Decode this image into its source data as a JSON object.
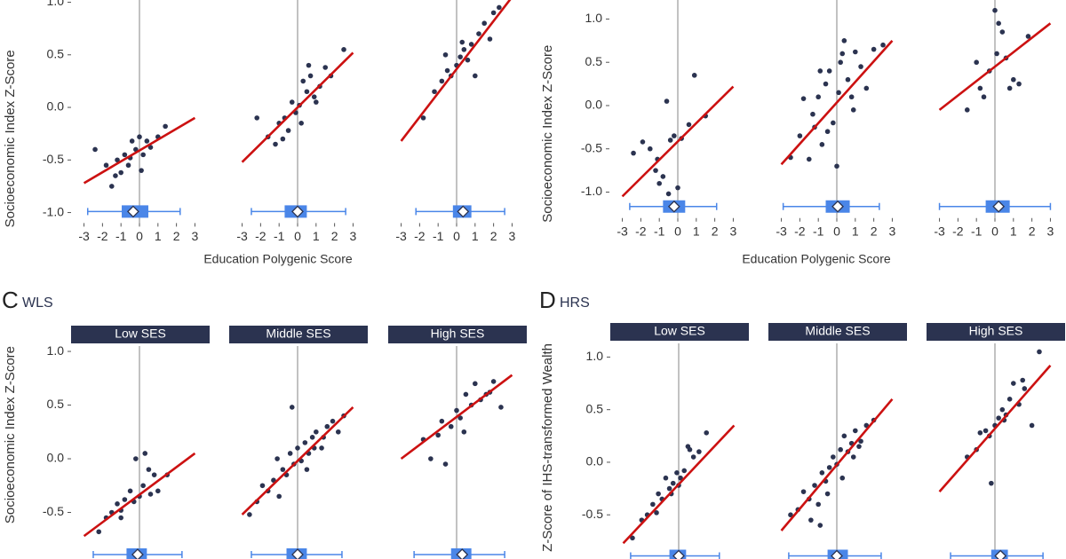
{
  "chart_data": [
    {
      "type": "scatter",
      "y_label": "Socioeconomic Index Z-Score",
      "x_label": "Education Polygenic Score",
      "xlim": [
        -3.7,
        3.7
      ],
      "xticks": [
        -3,
        -2,
        -1,
        0,
        1,
        2,
        3
      ],
      "ylim": [
        -1.1,
        1.12
      ],
      "yticks": [
        {
          "value": -1.0,
          "label": "-1.0"
        },
        {
          "value": -0.5,
          "label": "-0.5"
        },
        {
          "value": 0.0,
          "label": "0.0"
        },
        {
          "value": 0.5,
          "label": "0.5"
        },
        {
          "value": 1.0,
          "label": "1.0"
        }
      ],
      "point_color": "#2b3350",
      "fit_color": "#cc1111",
      "box_color": "#4a86e8",
      "facets": [
        {
          "x": [
            -2.4,
            -1.8,
            -1.5,
            -1.2,
            -1.0,
            -0.8,
            -0.6,
            -0.4,
            -0.2,
            0,
            0.2,
            0.4,
            0.6,
            1.0,
            1.4,
            -1.3,
            -0.5,
            0.1
          ],
          "y": [
            -0.4,
            -0.55,
            -0.75,
            -0.5,
            -0.62,
            -0.45,
            -0.55,
            -0.32,
            -0.4,
            -0.28,
            -0.45,
            -0.32,
            -0.38,
            -0.28,
            -0.18,
            -0.65,
            -0.48,
            -0.6
          ],
          "fit": {
            "x": [
              -3,
              3
            ],
            "y": [
              -0.72,
              -0.1
            ]
          },
          "box": {
            "whisker": [
              -2.8,
              2.2
            ],
            "box": [
              -0.96,
              0.48
            ],
            "mean": -0.34
          }
        },
        {
          "x": [
            -2.2,
            -1.6,
            -1.2,
            -1.0,
            -0.7,
            -0.5,
            -0.3,
            -0.1,
            0.1,
            0.3,
            0.5,
            0.7,
            0.9,
            1.2,
            1.5,
            1.8,
            2.5,
            -0.8,
            0.2,
            0.6,
            1.0
          ],
          "y": [
            -0.1,
            -0.28,
            -0.35,
            -0.15,
            -0.1,
            -0.22,
            0.05,
            -0.05,
            0.02,
            0.25,
            0.15,
            0.3,
            0.1,
            0.2,
            0.38,
            0.3,
            0.55,
            -0.3,
            -0.15,
            0.4,
            0.05
          ],
          "fit": {
            "x": [
              -3,
              3
            ],
            "y": [
              -0.52,
              0.52
            ]
          },
          "box": {
            "whisker": [
              -2.5,
              2.6
            ],
            "box": [
              -0.7,
              0.5
            ],
            "mean": 0
          }
        },
        {
          "x": [
            -1.8,
            -1.2,
            -0.8,
            -0.5,
            -0.3,
            0,
            0.2,
            0.4,
            0.6,
            0.8,
            1.0,
            1.2,
            1.5,
            1.8,
            2.0,
            2.3,
            -0.6,
            0.3
          ],
          "y": [
            -0.1,
            0.15,
            0.25,
            0.35,
            0.3,
            0.4,
            0.48,
            0.55,
            0.45,
            0.6,
            0.3,
            0.7,
            0.8,
            0.65,
            0.9,
            0.95,
            0.5,
            0.62
          ],
          "fit": {
            "x": [
              -3,
              3
            ],
            "y": [
              -0.32,
              1.05
            ]
          },
          "box": {
            "whisker": [
              -2.2,
              2.6
            ],
            "box": [
              -0.2,
              0.8
            ],
            "mean": 0.35
          }
        }
      ]
    },
    {
      "type": "scatter",
      "y_label": "Socioeconomic Index Z-Score",
      "x_label": "Education Polygenic Score",
      "xlim": [
        -3.7,
        3.7
      ],
      "xticks": [
        -3,
        -2,
        -1,
        0,
        1,
        2,
        3
      ],
      "ylim": [
        -1.3,
        1.22
      ],
      "yticks": [
        {
          "value": -1.0,
          "label": "-1.0"
        },
        {
          "value": -0.5,
          "label": "-0.5"
        },
        {
          "value": 0.0,
          "label": "0.0"
        },
        {
          "value": 0.5,
          "label": "0.5"
        },
        {
          "value": 1.0,
          "label": "1.0"
        }
      ],
      "point_color": "#2b3350",
      "fit_color": "#cc1111",
      "box_color": "#4a86e8",
      "facets": [
        {
          "x": [
            -2.4,
            -1.9,
            -1.5,
            -1.2,
            -1.0,
            -0.8,
            -0.6,
            -0.4,
            -0.2,
            0,
            0.2,
            0.6,
            0.9,
            1.5,
            -0.5,
            -1.1
          ],
          "y": [
            -0.55,
            -0.42,
            -0.5,
            -0.75,
            -0.9,
            -0.82,
            0.05,
            -0.4,
            -0.35,
            -0.95,
            -0.38,
            -0.22,
            0.35,
            -0.12,
            -1.02,
            -0.62
          ],
          "fit": {
            "x": [
              -3,
              3
            ],
            "y": [
              -1.05,
              0.22
            ]
          },
          "box": {
            "whisker": [
              -2.6,
              2.1
            ],
            "box": [
              -0.8,
              0.4
            ],
            "mean": -0.2
          }
        },
        {
          "x": [
            -2.5,
            -2.0,
            -1.8,
            -1.5,
            -1.2,
            -1.0,
            -0.8,
            -0.6,
            -0.4,
            -0.2,
            0,
            0.2,
            0.4,
            0.6,
            0.8,
            1.0,
            1.3,
            1.6,
            2.0,
            2.5,
            -1.3,
            -0.5,
            0.3,
            0.9,
            -0.9,
            0.1
          ],
          "y": [
            -0.6,
            -0.35,
            0.08,
            -0.62,
            -0.25,
            0.1,
            -0.45,
            0.25,
            0.4,
            -0.2,
            -0.7,
            0.5,
            0.75,
            0.3,
            0.1,
            0.62,
            0.45,
            0.2,
            0.65,
            0.7,
            -0.1,
            -0.3,
            0.6,
            -0.05,
            0.4,
            0.15
          ],
          "fit": {
            "x": [
              -3,
              3
            ],
            "y": [
              -0.68,
              0.75
            ]
          },
          "box": {
            "whisker": [
              -2.9,
              2.3
            ],
            "box": [
              -0.6,
              0.7
            ],
            "mean": 0.05
          }
        },
        {
          "x": [
            -1.5,
            -1.0,
            -0.6,
            -0.3,
            0,
            0.2,
            0.4,
            0.6,
            0.8,
            1.0,
            1.3,
            1.8,
            -0.8,
            0.1
          ],
          "y": [
            -0.05,
            0.5,
            0.1,
            0.4,
            1.1,
            0.95,
            0.85,
            0.55,
            0.2,
            0.3,
            0.25,
            0.8,
            0.2,
            0.6
          ],
          "fit": {
            "x": [
              -3,
              3
            ],
            "y": [
              -0.05,
              0.95
            ]
          },
          "box": {
            "whisker": [
              -3.0,
              3.0
            ],
            "box": [
              -0.5,
              0.8
            ],
            "mean": 0.2
          }
        }
      ]
    },
    {
      "type": "scatter",
      "letter": "C",
      "cohort": "WLS",
      "y_label": "Socioeconomic Index Z-Score",
      "xlim": [
        -3.7,
        3.7
      ],
      "ylim": [
        -1.0,
        1.05
      ],
      "yticks": [
        {
          "value": -0.5,
          "label": "-0.5"
        },
        {
          "value": 0.0,
          "label": "0.0"
        },
        {
          "value": 0.5,
          "label": "0.5"
        },
        {
          "value": 1.0,
          "label": "1.0"
        }
      ],
      "point_color": "#2b3350",
      "fit_color": "#cc1111",
      "box_color": "#4a86e8",
      "strip_color": "#2b3350",
      "facets": [
        {
          "strip": "Low SES",
          "x": [
            -2.2,
            -1.8,
            -1.5,
            -1.2,
            -1.0,
            -0.8,
            -0.5,
            -0.3,
            0,
            0.2,
            0.5,
            0.8,
            1.0,
            1.5,
            -0.2,
            0.3,
            -1.0,
            0.6
          ],
          "y": [
            -0.68,
            -0.55,
            -0.5,
            -0.42,
            -0.48,
            -0.38,
            -0.3,
            -0.4,
            -0.35,
            -0.25,
            -0.1,
            -0.15,
            -0.3,
            -0.15,
            0.0,
            0.05,
            -0.55,
            -0.33
          ],
          "fit": {
            "x": [
              -3,
              3
            ],
            "y": [
              -0.72,
              0.05
            ]
          },
          "box": {
            "whisker": [
              -2.5,
              2.3
            ],
            "box": [
              -0.7,
              0.4
            ],
            "mean": -0.1
          }
        },
        {
          "strip": "Middle SES",
          "x": [
            -2.6,
            -2.2,
            -1.9,
            -1.6,
            -1.3,
            -1.0,
            -0.8,
            -0.6,
            -0.4,
            -0.2,
            0,
            0.2,
            0.4,
            0.6,
            0.8,
            1.0,
            1.3,
            1.6,
            1.9,
            2.2,
            2.5,
            -1.1,
            -0.3,
            0.5,
            0.9,
            1.4
          ],
          "y": [
            -0.52,
            -0.4,
            -0.25,
            -0.3,
            -0.2,
            -0.35,
            -0.1,
            -0.15,
            0.05,
            -0.05,
            0.1,
            -0.02,
            0.15,
            0.05,
            0.2,
            0.25,
            0.1,
            0.3,
            0.35,
            0.25,
            0.4,
            0.0,
            0.48,
            -0.1,
            0.1,
            0.2
          ],
          "fit": {
            "x": [
              -3,
              3
            ],
            "y": [
              -0.52,
              0.48
            ]
          },
          "box": {
            "whisker": [
              -2.5,
              2.4
            ],
            "box": [
              -0.6,
              0.5
            ],
            "mean": 0
          }
        },
        {
          "strip": "High SES",
          "x": [
            -1.8,
            -1.4,
            -1.0,
            -0.6,
            -0.3,
            0,
            0.2,
            0.5,
            0.8,
            1.0,
            1.3,
            1.6,
            2.0,
            2.4,
            -0.8,
            0.4,
            1.8
          ],
          "y": [
            0.18,
            0.0,
            0.22,
            -0.05,
            0.3,
            0.45,
            0.38,
            0.6,
            0.5,
            0.7,
            0.55,
            0.6,
            0.72,
            0.48,
            0.35,
            0.25,
            0.62
          ],
          "fit": {
            "x": [
              -3,
              3
            ],
            "y": [
              0.0,
              0.78
            ]
          },
          "box": {
            "whisker": [
              -2.3,
              2.6
            ],
            "box": [
              -0.3,
              0.8
            ],
            "mean": 0.3
          }
        }
      ]
    },
    {
      "type": "scatter",
      "letter": "D",
      "cohort": "HRS",
      "y_label": "Z-Score of IHS-transformed Wealth",
      "xlim": [
        -3.7,
        3.7
      ],
      "ylim": [
        -1.0,
        1.13
      ],
      "yticks": [
        {
          "value": -0.5,
          "label": "-0.5"
        },
        {
          "value": 0.0,
          "label": "0.0"
        },
        {
          "value": 0.5,
          "label": "0.5"
        },
        {
          "value": 1.0,
          "label": "1.0"
        }
      ],
      "point_color": "#2b3350",
      "fit_color": "#cc1111",
      "box_color": "#4a86e8",
      "strip_color": "#2b3350",
      "facets": [
        {
          "strip": "Low SES",
          "x": [
            -2.5,
            -2.0,
            -1.7,
            -1.4,
            -1.1,
            -0.9,
            -0.7,
            -0.5,
            -0.3,
            -0.1,
            0.1,
            0.3,
            0.5,
            0.8,
            1.1,
            1.5,
            -0.4,
            0.0,
            0.6,
            -1.2
          ],
          "y": [
            -0.72,
            -0.55,
            -0.5,
            -0.4,
            -0.3,
            -0.35,
            -0.15,
            -0.25,
            -0.2,
            -0.1,
            -0.15,
            -0.08,
            0.15,
            0.05,
            0.1,
            0.28,
            -0.3,
            -0.22,
            0.12,
            -0.48
          ],
          "fit": {
            "x": [
              -3,
              3
            ],
            "y": [
              -0.77,
              0.35
            ]
          },
          "box": {
            "whisker": [
              -2.6,
              2.2
            ],
            "box": [
              -0.5,
              0.4
            ],
            "mean": 0
          }
        },
        {
          "strip": "Middle SES",
          "x": [
            -2.5,
            -2.1,
            -1.8,
            -1.5,
            -1.2,
            -1.0,
            -0.8,
            -0.6,
            -0.4,
            -0.2,
            0,
            0.2,
            0.4,
            0.6,
            0.8,
            1.0,
            1.3,
            1.6,
            2.0,
            -1.4,
            -0.5,
            0.3,
            0.9,
            -0.9,
            1.2
          ],
          "y": [
            -0.5,
            -0.45,
            -0.28,
            -0.35,
            -0.22,
            -0.4,
            -0.1,
            -0.18,
            -0.05,
            0.05,
            -0.02,
            0.12,
            0.25,
            0.1,
            0.18,
            0.3,
            0.2,
            0.35,
            0.4,
            -0.55,
            -0.3,
            -0.15,
            0.05,
            -0.6,
            0.15
          ],
          "fit": {
            "x": [
              -3,
              3
            ],
            "y": [
              -0.65,
              0.6
            ]
          },
          "box": {
            "whisker": [
              -2.6,
              2.4
            ],
            "box": [
              -0.5,
              0.6
            ],
            "mean": 0
          }
        },
        {
          "strip": "High SES",
          "x": [
            -1.5,
            -1.0,
            -0.8,
            -0.5,
            -0.2,
            0,
            0.2,
            0.4,
            0.6,
            0.8,
            1.0,
            1.3,
            1.6,
            2.0,
            2.4,
            -0.3,
            0.5,
            1.5
          ],
          "y": [
            0.05,
            0.12,
            0.28,
            0.3,
            -0.2,
            0.35,
            0.42,
            0.5,
            0.45,
            0.6,
            0.75,
            0.55,
            0.7,
            0.35,
            1.05,
            0.25,
            0.4,
            0.78
          ],
          "fit": {
            "x": [
              -3,
              3
            ],
            "y": [
              -0.28,
              0.92
            ]
          },
          "box": {
            "whisker": [
              -2.4,
              2.6
            ],
            "box": [
              -0.2,
              0.7
            ],
            "mean": 0.3
          }
        }
      ]
    }
  ]
}
